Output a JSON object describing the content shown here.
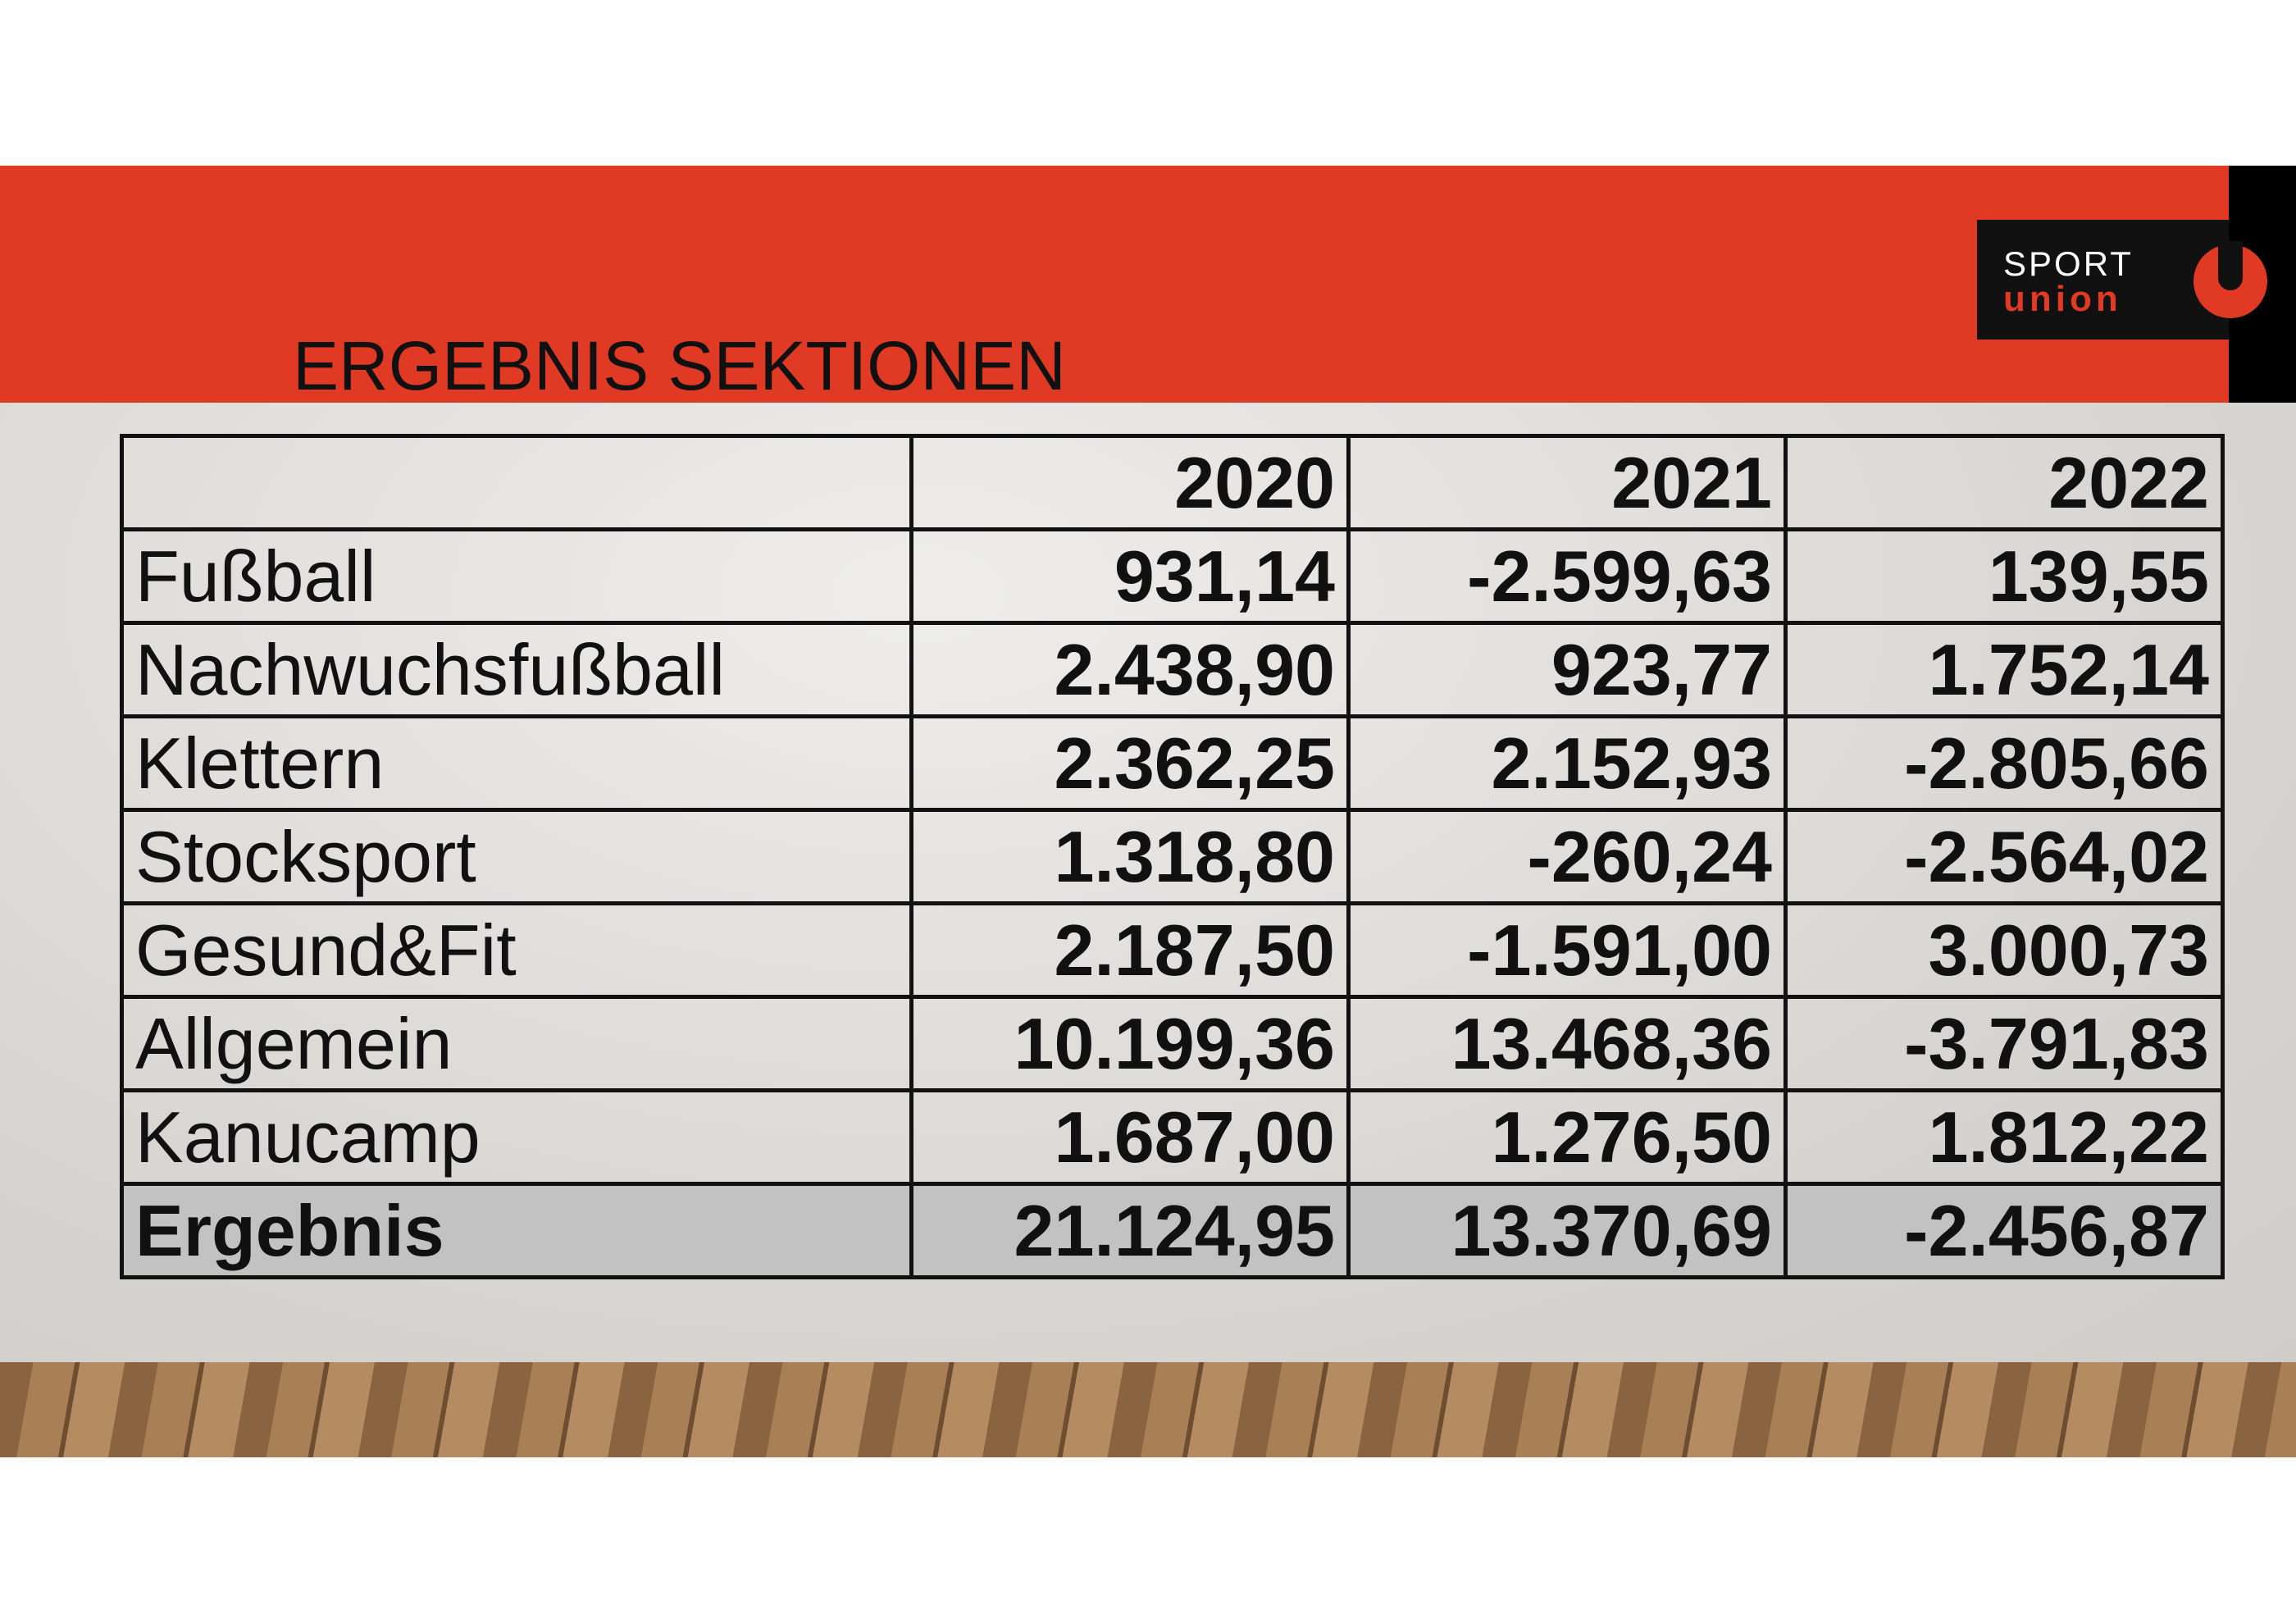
{
  "header": {
    "title": "ERGEBNIS SEKTIONEN"
  },
  "logo": {
    "line1": "SPORT",
    "line2": "union"
  },
  "table": {
    "columns": [
      "2020",
      "2021",
      "2022"
    ],
    "rows": [
      {
        "label": "Fußball",
        "values": [
          "931,14",
          "-2.599,63",
          "139,55"
        ]
      },
      {
        "label": "Nachwuchsfußball",
        "values": [
          "2.438,90",
          "923,77",
          "1.752,14"
        ]
      },
      {
        "label": "Klettern",
        "values": [
          "2.362,25",
          "2.152,93",
          "-2.805,66"
        ]
      },
      {
        "label": "Stocksport",
        "values": [
          "1.318,80",
          "-260,24",
          "-2.564,02"
        ]
      },
      {
        "label": "Gesund&Fit",
        "values": [
          "2.187,50",
          "-1.591,00",
          "3.000,73"
        ]
      },
      {
        "label": "Allgemein",
        "values": [
          "10.199,36",
          "13.468,36",
          "-3.791,83"
        ]
      },
      {
        "label": "Kanucamp",
        "values": [
          "1.687,00",
          "1.276,50",
          "1.812,22"
        ]
      }
    ],
    "total": {
      "label": "Ergebnis",
      "values": [
        "21.124,95",
        "13.370,69",
        "-2.456,87"
      ]
    }
  }
}
